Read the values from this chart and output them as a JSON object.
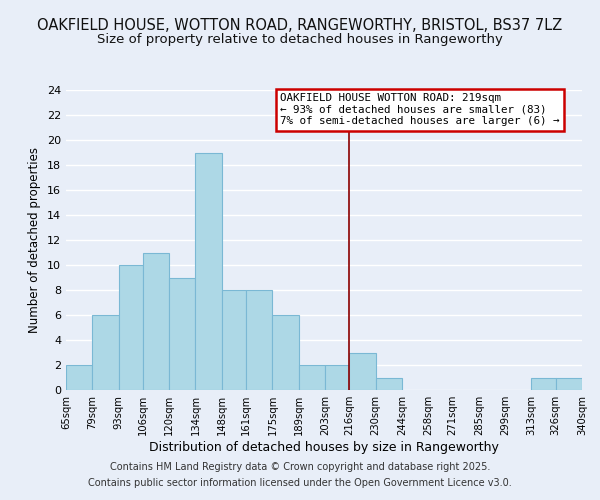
{
  "title": "OAKFIELD HOUSE, WOTTON ROAD, RANGEWORTHY, BRISTOL, BS37 7LZ",
  "subtitle": "Size of property relative to detached houses in Rangeworthy",
  "xlabel": "Distribution of detached houses by size in Rangeworthy",
  "ylabel": "Number of detached properties",
  "bin_edges": [
    65,
    79,
    93,
    106,
    120,
    134,
    148,
    161,
    175,
    189,
    203,
    216,
    230,
    244,
    258,
    271,
    285,
    299,
    313,
    326,
    340
  ],
  "bin_counts": [
    2,
    6,
    10,
    11,
    9,
    19,
    8,
    8,
    6,
    2,
    2,
    3,
    1,
    0,
    0,
    0,
    0,
    0,
    1,
    1
  ],
  "bar_color": "#add8e6",
  "bar_edge_color": "#7ab8d4",
  "vline_x": 216,
  "vline_color": "#8b0000",
  "ylim": [
    0,
    24
  ],
  "yticks": [
    0,
    2,
    4,
    6,
    8,
    10,
    12,
    14,
    16,
    18,
    20,
    22,
    24
  ],
  "annotation_title": "OAKFIELD HOUSE WOTTON ROAD: 219sqm",
  "annotation_line1": "← 93% of detached houses are smaller (83)",
  "annotation_line2": "7% of semi-detached houses are larger (6) →",
  "annotation_box_edge_color": "#cc0000",
  "footer1": "Contains HM Land Registry data © Crown copyright and database right 2025.",
  "footer2": "Contains public sector information licensed under the Open Government Licence v3.0.",
  "background_color": "#e8eef8",
  "grid_color": "#ffffff",
  "title_fontsize": 10.5,
  "subtitle_fontsize": 9.5,
  "tick_labels": [
    "65sqm",
    "79sqm",
    "93sqm",
    "106sqm",
    "120sqm",
    "134sqm",
    "148sqm",
    "161sqm",
    "175sqm",
    "189sqm",
    "203sqm",
    "216sqm",
    "230sqm",
    "244sqm",
    "258sqm",
    "271sqm",
    "285sqm",
    "299sqm",
    "313sqm",
    "326sqm",
    "340sqm"
  ]
}
